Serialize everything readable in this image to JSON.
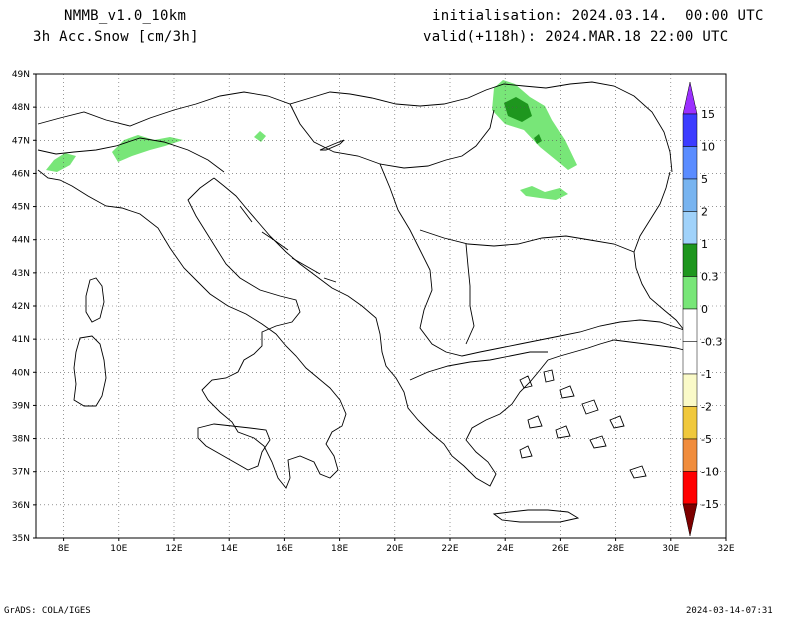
{
  "header": {
    "model": "NMMB_v1.0_10km",
    "variable": "3h Acc.Snow [cm/3h]",
    "init": "initialisation: 2024.03.14.  00:00 UTC",
    "valid": "valid(+118h): 2024.MAR.18 22:00 UTC"
  },
  "map": {
    "lat_labels": [
      "49N",
      "48N",
      "47N",
      "46N",
      "45N",
      "44N",
      "43N",
      "42N",
      "41N",
      "40N",
      "39N",
      "38N",
      "37N",
      "36N",
      "35N"
    ],
    "lon_labels": [
      "8E",
      "10E",
      "12E",
      "14E",
      "16E",
      "18E",
      "20E",
      "22E",
      "24E",
      "26E",
      "28E",
      "30E",
      "32E"
    ],
    "extent": {
      "lon": [
        7,
        32
      ],
      "lat": [
        35,
        49
      ]
    },
    "grid": "dotted"
  },
  "legend": {
    "entries": [
      {
        "label": "15",
        "color": "#3c3cff"
      },
      {
        "label": "10",
        "color": "#5a8cff"
      },
      {
        "label": "5",
        "color": "#78b4f0"
      },
      {
        "label": "2",
        "color": "#a0d2fa"
      },
      {
        "label": "1",
        "color": "#1e961e"
      },
      {
        "label": "0.3",
        "color": "#78e678"
      },
      {
        "label": "0",
        "color": "#ffffff"
      },
      {
        "label": "-0.3",
        "color": "#ffffff"
      },
      {
        "label": "-1",
        "color": "#fafac8"
      },
      {
        "label": "-2",
        "color": "#f0c83c"
      },
      {
        "label": "-5",
        "color": "#f08c3c"
      },
      {
        "label": "-10",
        "color": "#ff0000"
      },
      {
        "label": "-15",
        "color": "#c80000"
      }
    ],
    "top_arrow_color": "#9b30ff",
    "bottom_arrow_color": "#7d0000"
  },
  "footer": {
    "left": "GrADS: COLA/IGES",
    "right": "2024-03-14-07:31"
  }
}
